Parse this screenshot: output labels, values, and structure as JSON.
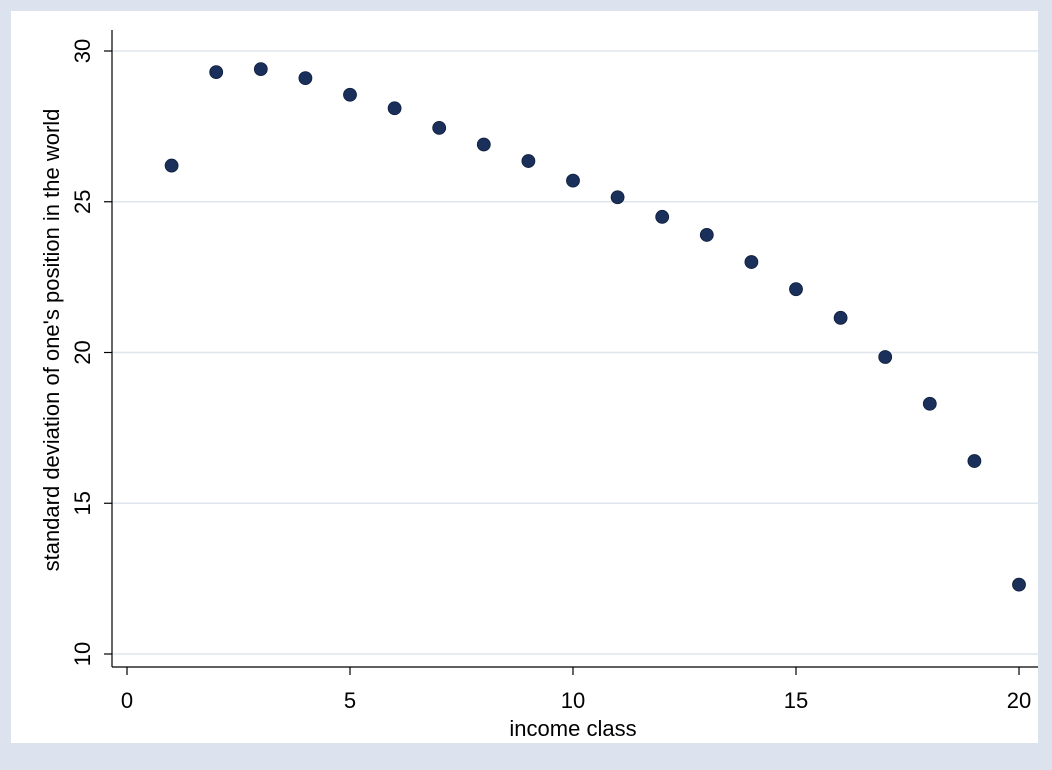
{
  "chart_data": {
    "type": "scatter",
    "title": "",
    "xlabel": "income class",
    "ylabel": "standard deviation of one's position in the world",
    "xlim": [
      0,
      20
    ],
    "ylim": [
      10,
      30
    ],
    "xticks": [
      0,
      5,
      10,
      15,
      20
    ],
    "yticks": [
      10,
      15,
      20,
      25,
      30
    ],
    "grid": "horizontal",
    "legend": "none",
    "series": [
      {
        "x": [
          1,
          2,
          3,
          4,
          5,
          6,
          7,
          8,
          9,
          10,
          11,
          12,
          13,
          14,
          15,
          16,
          17,
          18,
          19,
          20
        ],
        "y": [
          26.2,
          29.3,
          29.4,
          29.1,
          28.55,
          28.1,
          27.45,
          26.9,
          26.35,
          25.7,
          25.15,
          24.5,
          23.9,
          23.0,
          22.1,
          21.15,
          19.85,
          18.3,
          16.4,
          12.3
        ]
      }
    ],
    "colors": {
      "outer_background": "#dde3ee",
      "plot_background": "#ffffff",
      "marker": "#1a2f5a",
      "gridline": "#dfe5ee",
      "axis": "#000000"
    }
  }
}
